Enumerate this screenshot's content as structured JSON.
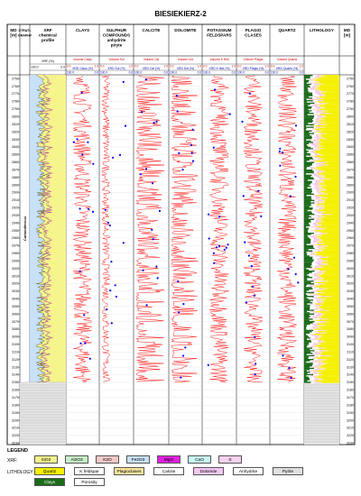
{
  "title": "BIESIEKIERZ-2",
  "columns": [
    {
      "key": "md",
      "label": "MD\n[m]"
    },
    {
      "key": "strat",
      "label": "STRATI-\nGRAPHY"
    },
    {
      "key": "xrf",
      "label": "XRF\nchemical\nprofile"
    },
    {
      "key": "clays",
      "label": "CLAYS"
    },
    {
      "key": "sulph",
      "label": "SULPHUR\nCOMPOUNDS\nanhydrite\npiryte"
    },
    {
      "key": "calcite",
      "label": "CALCITE"
    },
    {
      "key": "dolomite",
      "label": "DOLOMITE"
    },
    {
      "key": "kfeld",
      "label": "POTASSIUM\nFELDSPARS"
    },
    {
      "key": "plag",
      "label": "PLAGIO\nCLASES"
    },
    {
      "key": "quartz",
      "label": "QUARTZ"
    },
    {
      "key": "lith",
      "label": "LITHOLOGY"
    },
    {
      "key": "md2",
      "label": "MD\n[m]"
    }
  ],
  "scale_rows": {
    "xrf": [
      "XRF (%)",
      "100.0",
      "0.0"
    ],
    "mineral_vol": [
      "Volume Clays",
      "Volume Sul",
      "Volume Cal",
      "Volume Dol",
      "Volume K feld",
      "Volume Plagio",
      "Volume Quartz"
    ],
    "mineral_xrd": [
      "XRD Clays (%)",
      "XRD Sul (%)",
      "XRD Cal (%)",
      "XRD Dol (%)",
      "XRD K feld (%)",
      "XRD Plagio (%)",
      "XRD Quartz (%)"
    ],
    "vol_range": [
      "0.0",
      "1.0"
    ],
    "xrd_range": [
      "100.0",
      "0.0"
    ]
  },
  "stratigraphy_label": "Carboniferous",
  "depth_ticks": [
    "2750",
    "2760",
    "2770",
    "2780",
    "2790",
    "2800",
    "2810",
    "2820",
    "2830",
    "2840",
    "2850",
    "2860",
    "2870",
    "2880",
    "2890",
    "2900",
    "2910",
    "2920",
    "2930",
    "2940",
    "2950",
    "2960",
    "2970",
    "2980",
    "2990",
    "3000",
    "3010",
    "3020",
    "3030",
    "3040",
    "3050",
    "3060",
    "3070",
    "3080",
    "3090",
    "3100",
    "3110",
    "3120",
    "3130",
    "3140",
    "3150",
    "3160",
    "3170",
    "3180",
    "3190",
    "3200",
    "3210",
    "3220",
    "3230"
  ],
  "depth_range": [
    2745,
    3232
  ],
  "data_end_depth": 3150,
  "legend": {
    "title": "LEGEND",
    "xrf_label": "XRF:",
    "xrf_items": [
      {
        "name": "SiO2",
        "color": "#f5f58c"
      },
      {
        "name": "Al2O3",
        "color": "#c8f0c8"
      },
      {
        "name": "K2O",
        "color": "#f5c8c8"
      },
      {
        "name": "Fe2O3",
        "color": "#c8e0f8"
      },
      {
        "name": "MgO",
        "color": "#e020e0"
      },
      {
        "name": "CaO",
        "color": "#c8f8f8"
      },
      {
        "name": "S",
        "color": "#f8d0f0"
      }
    ],
    "lith_label": "LITHOLOGY:",
    "lith_items": [
      {
        "name": "Quartz",
        "color": "#f5f000"
      },
      {
        "name": "K feldspar",
        "color": "#ffffff"
      },
      {
        "name": "Plagioclases",
        "color": "#f8e8a0"
      },
      {
        "name": "Calcite",
        "color": "#ffffff"
      },
      {
        "name": "Dolomite",
        "color": "#f5c8f5"
      },
      {
        "name": "Anhydrite",
        "color": "#ffffff"
      },
      {
        "name": "Pyrite",
        "color": "#e0e0e0"
      },
      {
        "name": "Clays",
        "color": "#1a6b1a"
      },
      {
        "name": "Porosity",
        "color": "#ffffff"
      }
    ]
  },
  "colors": {
    "curve": "#ff0000",
    "xrd": "#0000ff",
    "lith_bg": "#ffffff"
  }
}
